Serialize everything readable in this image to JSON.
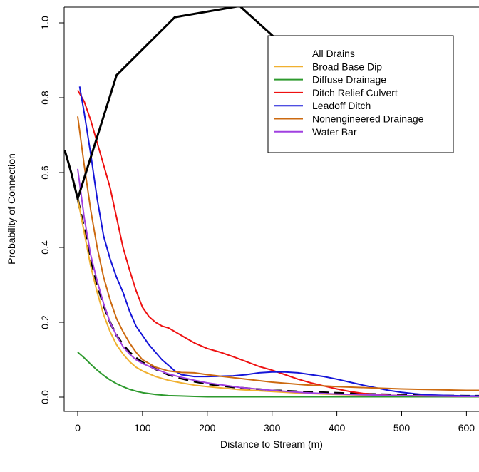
{
  "chart_data": {
    "type": "line",
    "title": "",
    "xlabel": "Distance to Stream (m)",
    "ylabel": "Probability of Connection",
    "xlim": [
      -20,
      625
    ],
    "ylim": [
      -0.02,
      1.02
    ],
    "x_ticks": [
      0,
      100,
      200,
      300,
      400,
      500,
      600
    ],
    "y_ticks": [
      0.0,
      0.2,
      0.4,
      0.6,
      0.8,
      1.0
    ],
    "x_tick_labels": [
      "0",
      "100",
      "200",
      "300",
      "400",
      "500",
      "600"
    ],
    "y_tick_labels": [
      "0.0",
      "0.2",
      "0.4",
      "0.6",
      "0.8",
      "1.0"
    ],
    "grid": false,
    "legend_position": "top-right",
    "series": [
      {
        "name": "All Drains",
        "color": "#000000",
        "style": "dashed",
        "x": [
          0,
          10,
          20,
          30,
          40,
          50,
          60,
          70,
          80,
          90,
          100,
          120,
          140,
          160,
          180,
          200,
          250,
          300,
          350,
          400,
          450,
          500,
          550,
          600,
          625
        ],
        "y": [
          0.53,
          0.45,
          0.37,
          0.3,
          0.245,
          0.2,
          0.165,
          0.14,
          0.12,
          0.105,
          0.093,
          0.075,
          0.06,
          0.05,
          0.042,
          0.035,
          0.025,
          0.018,
          0.014,
          0.011,
          0.008,
          0.006,
          0.004,
          0.003,
          0.003
        ]
      },
      {
        "name": "Broad Base Dip",
        "color": "#f0b030",
        "style": "solid",
        "x": [
          0,
          10,
          20,
          30,
          40,
          50,
          60,
          70,
          80,
          90,
          100,
          120,
          140,
          160,
          180,
          200,
          250,
          300,
          350,
          400,
          450,
          500,
          550,
          600,
          625
        ],
        "y": [
          0.53,
          0.44,
          0.35,
          0.28,
          0.22,
          0.175,
          0.14,
          0.115,
          0.095,
          0.08,
          0.07,
          0.055,
          0.045,
          0.038,
          0.032,
          0.028,
          0.02,
          0.015,
          0.01,
          0.007,
          0.005,
          0.004,
          0.003,
          0.002,
          0.002
        ]
      },
      {
        "name": "Diffuse Drainage",
        "color": "#2e9a2e",
        "style": "solid",
        "x": [
          0,
          10,
          20,
          30,
          40,
          50,
          60,
          70,
          80,
          90,
          100,
          120,
          140,
          160,
          180,
          200,
          250,
          300,
          350,
          400,
          450,
          500,
          550,
          600,
          625
        ],
        "y": [
          0.12,
          0.105,
          0.088,
          0.072,
          0.058,
          0.046,
          0.036,
          0.028,
          0.021,
          0.016,
          0.012,
          0.007,
          0.004,
          0.003,
          0.002,
          0.001,
          0.001,
          0.001,
          0.001,
          0.001,
          0.001,
          0.001,
          0.001,
          0.001,
          0.001
        ]
      },
      {
        "name": "Ditch Relief Culvert",
        "color": "#ee1111",
        "style": "solid",
        "x": [
          0,
          10,
          20,
          30,
          40,
          50,
          60,
          70,
          80,
          90,
          100,
          110,
          120,
          130,
          140,
          150,
          160,
          180,
          200,
          220,
          240,
          260,
          280,
          300,
          320,
          340,
          360,
          380,
          400,
          420,
          440,
          460,
          480,
          500,
          550,
          600,
          625
        ],
        "y": [
          0.82,
          0.79,
          0.74,
          0.68,
          0.62,
          0.56,
          0.48,
          0.4,
          0.34,
          0.285,
          0.24,
          0.215,
          0.2,
          0.19,
          0.185,
          0.175,
          0.165,
          0.145,
          0.13,
          0.12,
          0.108,
          0.095,
          0.082,
          0.072,
          0.06,
          0.048,
          0.038,
          0.03,
          0.022,
          0.015,
          0.01,
          0.007,
          0.005,
          0.004,
          0.003,
          0.002,
          0.002
        ]
      },
      {
        "name": "Leadoff Ditch",
        "color": "#1515d8",
        "style": "solid",
        "x": [
          3,
          10,
          20,
          30,
          40,
          50,
          60,
          70,
          80,
          90,
          100,
          110,
          120,
          130,
          140,
          150,
          160,
          180,
          200,
          220,
          240,
          260,
          280,
          300,
          320,
          340,
          360,
          380,
          400,
          420,
          440,
          460,
          480,
          500,
          520,
          540,
          560,
          580,
          600,
          625
        ],
        "y": [
          0.83,
          0.76,
          0.65,
          0.53,
          0.43,
          0.37,
          0.32,
          0.28,
          0.23,
          0.19,
          0.165,
          0.14,
          0.12,
          0.1,
          0.085,
          0.07,
          0.06,
          0.055,
          0.055,
          0.056,
          0.057,
          0.06,
          0.065,
          0.067,
          0.067,
          0.065,
          0.06,
          0.055,
          0.048,
          0.04,
          0.032,
          0.025,
          0.018,
          0.013,
          0.009,
          0.006,
          0.005,
          0.004,
          0.003,
          0.003
        ]
      },
      {
        "name": "Nonengineered Drainage",
        "color": "#cc6a10",
        "style": "solid",
        "x": [
          0,
          10,
          20,
          30,
          40,
          50,
          60,
          70,
          80,
          90,
          100,
          120,
          140,
          160,
          180,
          200,
          250,
          300,
          350,
          400,
          450,
          500,
          550,
          600,
          625
        ],
        "y": [
          0.75,
          0.62,
          0.5,
          0.4,
          0.32,
          0.26,
          0.21,
          0.175,
          0.145,
          0.12,
          0.1,
          0.08,
          0.07,
          0.066,
          0.065,
          0.06,
          0.05,
          0.04,
          0.033,
          0.028,
          0.025,
          0.022,
          0.02,
          0.018,
          0.018
        ]
      },
      {
        "name": "Water Bar",
        "color": "#a040e0",
        "style": "solid",
        "x": [
          0,
          10,
          20,
          30,
          40,
          50,
          60,
          70,
          80,
          90,
          100,
          120,
          140,
          160,
          180,
          200,
          250,
          300,
          350,
          400,
          450,
          500,
          550,
          600,
          625
        ],
        "y": [
          0.61,
          0.48,
          0.38,
          0.31,
          0.25,
          0.2,
          0.165,
          0.135,
          0.115,
          0.1,
          0.09,
          0.075,
          0.062,
          0.053,
          0.045,
          0.038,
          0.026,
          0.018,
          0.012,
          0.008,
          0.006,
          0.004,
          0.003,
          0.002,
          0.002
        ]
      },
      {
        "name": "",
        "role": "logistic-fit-overlay",
        "color": "#000000",
        "style": "solid",
        "x": [
          -20,
          -10,
          0,
          60,
          150,
          250,
          330
        ],
        "y": [
          0.66,
          0.6,
          0.53,
          0.86,
          1.015,
          1.045,
          0.92
        ]
      }
    ]
  }
}
